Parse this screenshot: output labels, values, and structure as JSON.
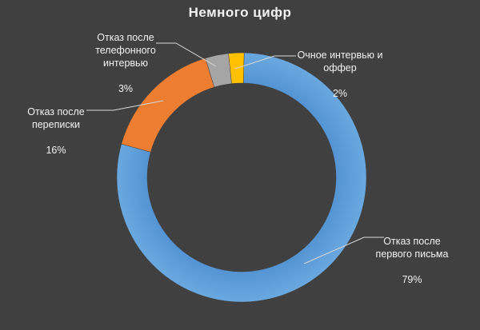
{
  "chart_data": {
    "type": "pie",
    "variant": "doughnut",
    "title": "Немного цифр",
    "categories": [
      "Отказ после первого письма",
      "Отказ после переписки",
      "Отказ после телефонного интервью",
      "Очное интервью и оффер"
    ],
    "values": [
      79,
      16,
      3,
      2
    ],
    "value_labels": [
      "79%",
      "16%",
      "3%",
      "2%"
    ],
    "colors": [
      "#5b9bd5",
      "#ed7d31",
      "#a5a5a5",
      "#ffc000"
    ],
    "legend": "none",
    "data_labels": "category-name-and-percent"
  },
  "labels": [
    {
      "text": "Отказ после\nпервого письма",
      "pct": "79%"
    },
    {
      "text": "Отказ после\nпереписки",
      "pct": "16%"
    },
    {
      "text": "Отказ после\nтелефонного\nинтервью",
      "pct": "3%"
    },
    {
      "text": "Очное интервью и\nоффер",
      "pct": "2%"
    }
  ]
}
